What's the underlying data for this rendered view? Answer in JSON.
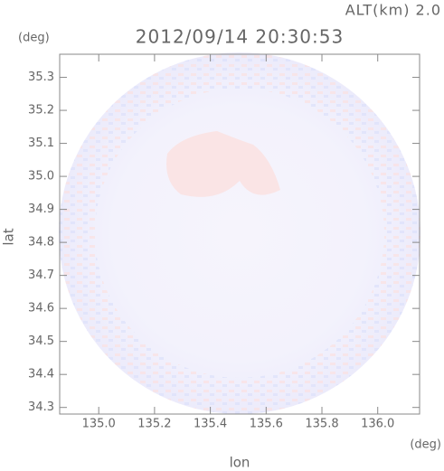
{
  "chart_data": {
    "type": "map",
    "title": "2012/09/14 20:30:53",
    "annotation": "ALT(km) 2.0",
    "x_label": "lon",
    "x_unit": "(deg)",
    "y_label": "lat",
    "y_unit": "(deg)",
    "xlim": [
      134.86,
      136.15
    ],
    "xticks": [
      {
        "value": 135.0,
        "label": "135.0"
      },
      135.2,
      135.4,
      135.6,
      135.8,
      {
        "value": 136.0,
        "label": "136.0"
      }
    ],
    "ylim": [
      34.28,
      35.37
    ],
    "yticks": [
      34.3,
      34.4,
      34.5,
      34.6,
      34.7,
      34.8,
      34.9,
      {
        "value": 35.0,
        "label": "35.0"
      },
      35.1,
      35.2,
      35.3
    ]
  }
}
